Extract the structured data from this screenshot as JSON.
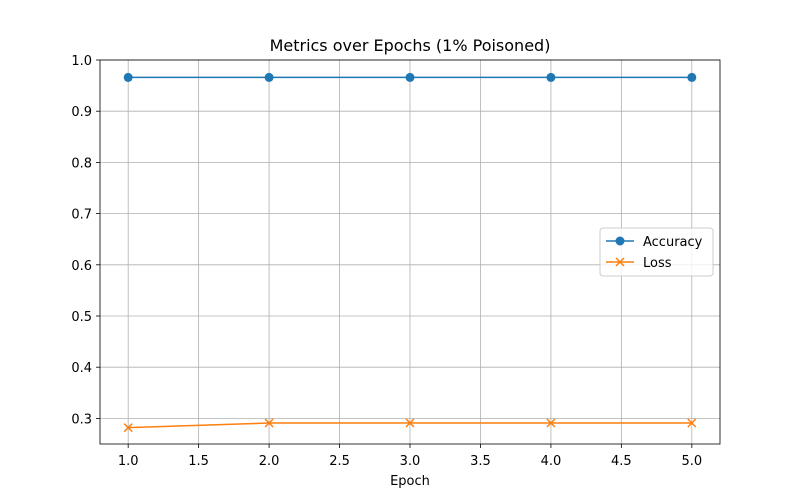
{
  "chart_data": {
    "type": "line",
    "title": "Metrics over Epochs (1% Poisoned)",
    "xlabel": "Epoch",
    "ylabel": "",
    "xlim": [
      0.8,
      5.2
    ],
    "ylim": [
      0.25,
      1.0
    ],
    "x_ticks": [
      1.0,
      1.5,
      2.0,
      2.5,
      3.0,
      3.5,
      4.0,
      4.5,
      5.0
    ],
    "x_tick_labels": [
      "1.0",
      "1.5",
      "2.0",
      "2.5",
      "3.0",
      "3.5",
      "4.0",
      "4.5",
      "5.0"
    ],
    "y_ticks": [
      0.3,
      0.4,
      0.5,
      0.6,
      0.7,
      0.8,
      0.9,
      1.0
    ],
    "y_tick_labels": [
      "0.3",
      "0.4",
      "0.5",
      "0.6",
      "0.7",
      "0.8",
      "0.9",
      "1.0"
    ],
    "x": [
      1,
      2,
      3,
      4,
      5
    ],
    "series": [
      {
        "name": "Accuracy",
        "values": [
          0.966,
          0.966,
          0.966,
          0.966,
          0.966
        ],
        "color": "#1f77b4",
        "marker": "circle"
      },
      {
        "name": "Loss",
        "values": [
          0.282,
          0.291,
          0.291,
          0.291,
          0.291
        ],
        "color": "#ff7f0e",
        "marker": "x"
      }
    ],
    "grid": true,
    "legend_position": "center-right"
  }
}
